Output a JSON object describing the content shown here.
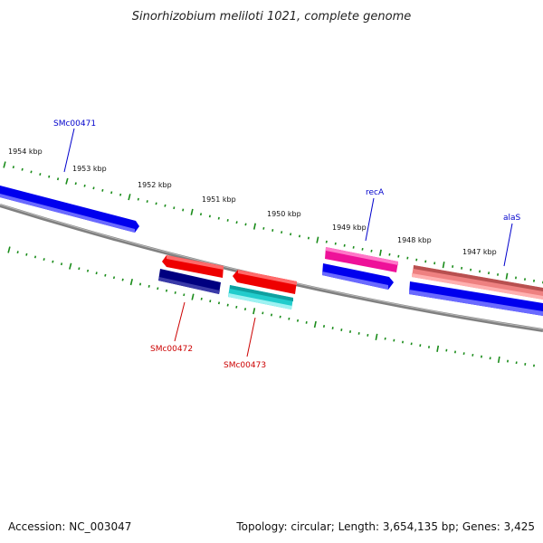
{
  "title": "Sinorhizobium meliloti 1021, complete genome",
  "footer": {
    "accession": "Accession: NC_003047",
    "summary": "Topology: circular; Length: 3,654,135 bp; Genes: 3,425"
  },
  "tick_labels": [
    "1954 kbp",
    "1953 kbp",
    "1952 kbp",
    "1951 kbp",
    "1950 kbp",
    "1949 kbp",
    "1948 kbp",
    "1947 kbp"
  ],
  "genes": [
    {
      "name": "SMc00471",
      "color": "#0000cc"
    },
    {
      "name": "recA",
      "color": "#0000cc"
    },
    {
      "name": "alaS",
      "color": "#0000cc"
    },
    {
      "name": "SMc00472",
      "color": "#cc0000"
    },
    {
      "name": "SMc00473",
      "color": "#cc0000"
    }
  ],
  "colors": {
    "backbone": "#808080",
    "ticks": "#1a8c1a",
    "blue_feature": "#0000ee",
    "navy_feature": "#000080",
    "red_feature": "#ee0000",
    "magenta_feature": "#ee1199",
    "cyan_feature": "#22cccc",
    "salmon_feature": "#ee8080"
  }
}
